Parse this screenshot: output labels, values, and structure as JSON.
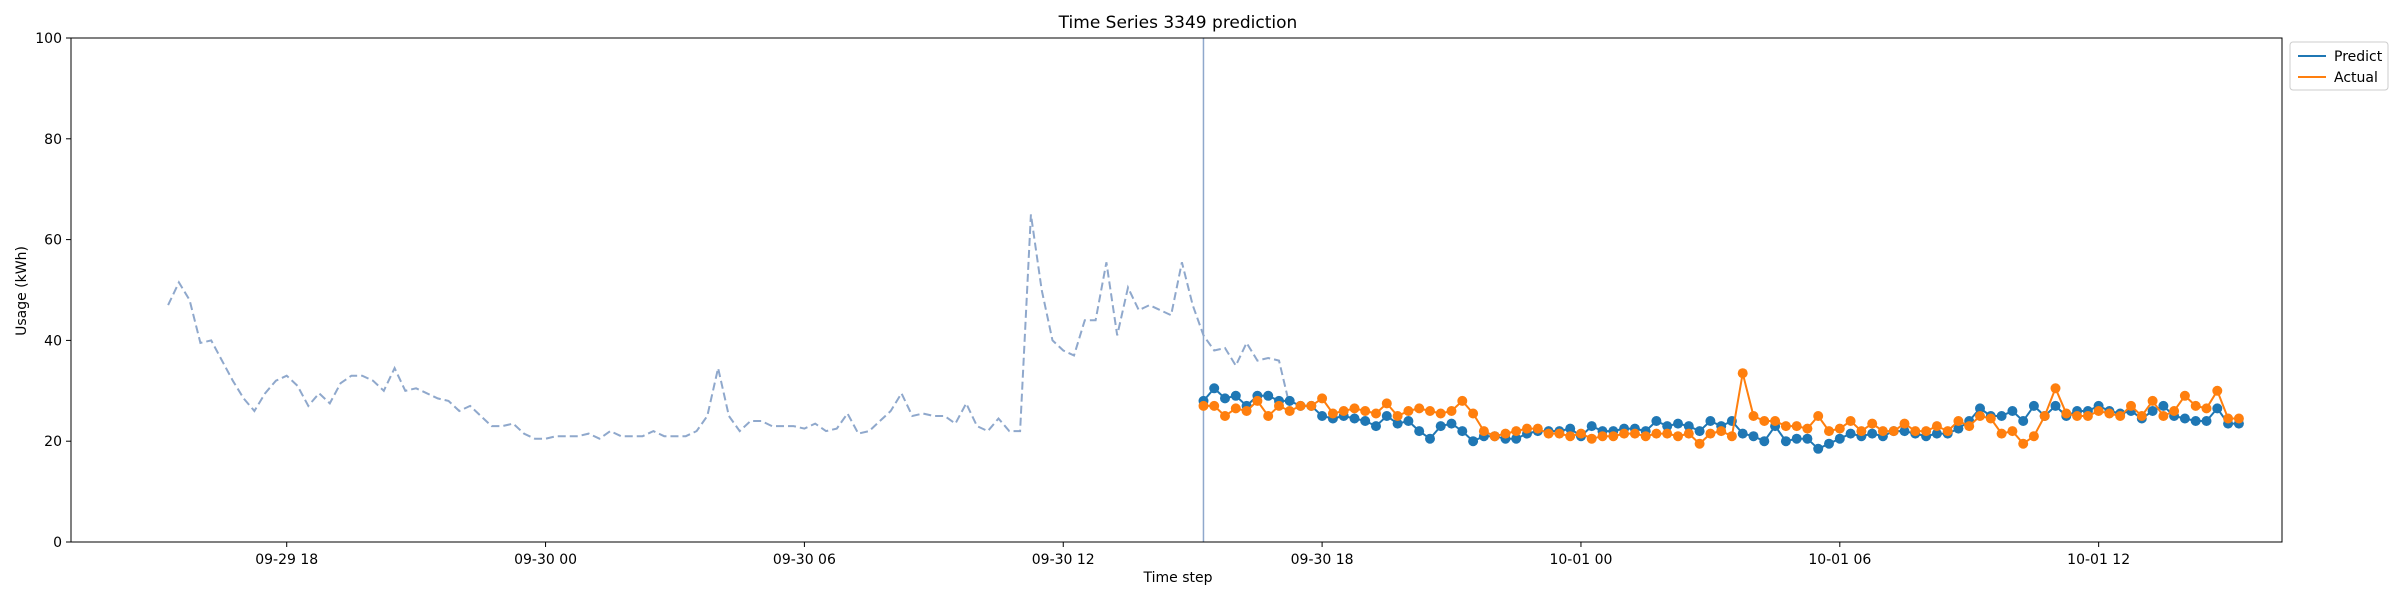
{
  "chart_data": {
    "type": "line",
    "title": "Time Series 3349 prediction",
    "xlabel": "Time step",
    "ylabel": "Usage (kWh)",
    "ylim": [
      0,
      100
    ],
    "yticks": [
      "0",
      "20",
      "40",
      "60",
      "80",
      "100"
    ],
    "x_axis": {
      "start": "2023-09-29 13:00",
      "end": "2023-10-01 16:15",
      "ticks": [
        {
          "time": "2023-09-29 18:00",
          "label": "09-29 18"
        },
        {
          "time": "2023-09-30 00:00",
          "label": "09-30 00"
        },
        {
          "time": "2023-09-30 06:00",
          "label": "09-30 06"
        },
        {
          "time": "2023-09-30 12:00",
          "label": "09-30 12"
        },
        {
          "time": "2023-09-30 18:00",
          "label": "09-30 18"
        },
        {
          "time": "2023-10-01 00:00",
          "label": "10-01 00"
        },
        {
          "time": "2023-10-01 06:00",
          "label": "10-01 06"
        },
        {
          "time": "2023-10-01 12:00",
          "label": "10-01 12"
        }
      ]
    },
    "history": {
      "start": "2023-09-29 15:15",
      "step_minutes": 15,
      "style": "dashed",
      "color": "#8fa8cc",
      "values": [
        47,
        51.5,
        48,
        39.5,
        40,
        36,
        32,
        28.5,
        26,
        29.5,
        32,
        33,
        31,
        27,
        29.5,
        27.5,
        31.5,
        33,
        33,
        32,
        30,
        34.5,
        30,
        30.5,
        29.5,
        28.5,
        28,
        26,
        27,
        25,
        23,
        23,
        23.5,
        21.5,
        20.5,
        20.5,
        21,
        21,
        21,
        21.5,
        20.5,
        22,
        21,
        21,
        21,
        22,
        21,
        21,
        21,
        22,
        25,
        34.5,
        25,
        22,
        24,
        24,
        23,
        23,
        23,
        22.5,
        23.5,
        22,
        22.5,
        25.5,
        21.5,
        22,
        24,
        26,
        29.5,
        25,
        25.5,
        25,
        25,
        23.5,
        27.5,
        23,
        22,
        24.5,
        22,
        22,
        65,
        50,
        40,
        38,
        37,
        44,
        44,
        55.5,
        41,
        50.5,
        46,
        47,
        46,
        45,
        55.5,
        47,
        41,
        38,
        38.5,
        35,
        39.5,
        36,
        36.5,
        36,
        27
      ]
    },
    "forecast_start": "2023-09-30 15:15",
    "series": [
      {
        "name": "Predict",
        "color": "#1f77b4",
        "start": "2023-09-30 15:15",
        "step_minutes": 15,
        "values": [
          28,
          30.5,
          28.5,
          29,
          27,
          29,
          29,
          28,
          28,
          27,
          27,
          25,
          24.5,
          25,
          24.5,
          24,
          23,
          25,
          23.5,
          24,
          22,
          20.5,
          23,
          23.5,
          22,
          20,
          21,
          21,
          20.5,
          20.5,
          21.5,
          22,
          22,
          22,
          22.5,
          21,
          23,
          22,
          22,
          22.5,
          22.5,
          22,
          24,
          23,
          23.5,
          23,
          22,
          24,
          23,
          24,
          21.5,
          21,
          20,
          23,
          20,
          20.5,
          20.5,
          18.5,
          19.5,
          20.5,
          21.5,
          21,
          21.5,
          21,
          22,
          22,
          21.5,
          21,
          21.5,
          21.5,
          22.5,
          24,
          26.5,
          25,
          25,
          26,
          24,
          27,
          25,
          27,
          25,
          26,
          26,
          27,
          26,
          25.5,
          26,
          24.5,
          26,
          27,
          25,
          24.5,
          24,
          24,
          26.5,
          23.5,
          23.5
        ]
      },
      {
        "name": "Actual",
        "color": "#ff7f0e",
        "start": "2023-09-30 15:15",
        "step_minutes": 15,
        "values": [
          27,
          27,
          25,
          26.5,
          26,
          28,
          25,
          27,
          26,
          27,
          27,
          28.5,
          25.5,
          26,
          26.5,
          26,
          25.5,
          27.5,
          25,
          26,
          26.5,
          26,
          25.5,
          26,
          28,
          25.5,
          22,
          21,
          21.5,
          22,
          22.5,
          22.5,
          21.5,
          21.5,
          21,
          21.5,
          20.5,
          21,
          21,
          21.5,
          21.5,
          21,
          21.5,
          21.5,
          21,
          21.5,
          19.5,
          21.5,
          22,
          21,
          33.5,
          25,
          24,
          24,
          23,
          23,
          22.5,
          25,
          22,
          22.5,
          24,
          22,
          23.5,
          22,
          22,
          23.5,
          22,
          22,
          23,
          22,
          24,
          23,
          25,
          24.5,
          21.5,
          22,
          19.5,
          21,
          25,
          30.5,
          25.5,
          25,
          25,
          26,
          25.5,
          25,
          27,
          25,
          28,
          25,
          26,
          29,
          27,
          26.5,
          30,
          24.5,
          24.5
        ]
      }
    ],
    "legend": {
      "location": "top-right, outside axes",
      "entries": [
        "Predict",
        "Actual"
      ]
    },
    "grid": false
  }
}
